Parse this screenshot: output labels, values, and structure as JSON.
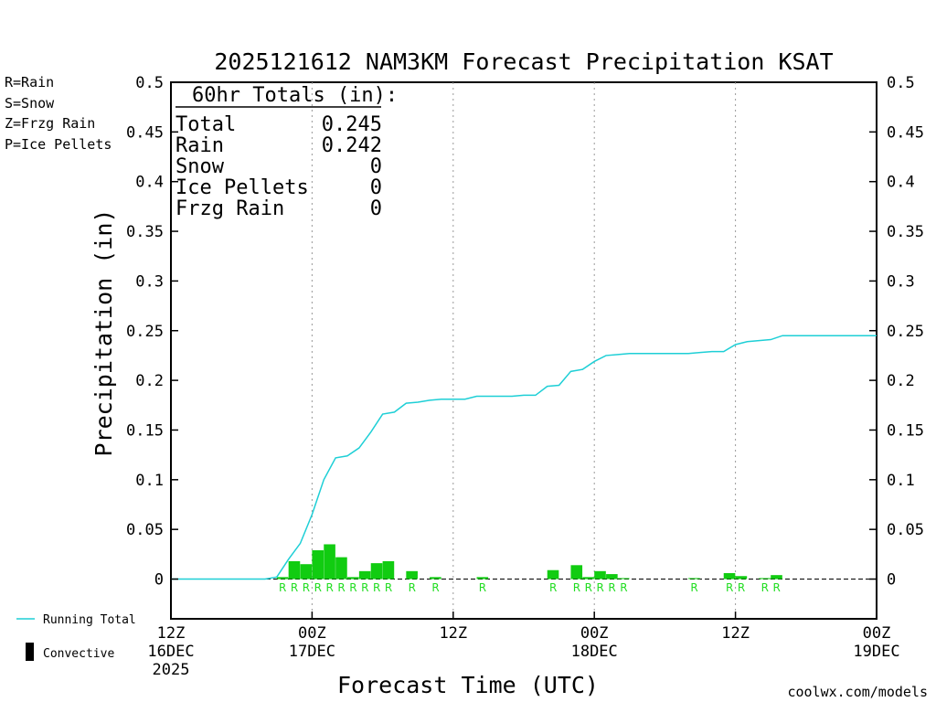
{
  "chart_data": {
    "type": "bar",
    "title": "2025121612 NAM3KM Forecast Precipitation KSAT",
    "xlabel": "Forecast Time (UTC)",
    "ylabel": "Precipitation (in)",
    "ylim": [
      -0.04,
      0.5
    ],
    "xlim_hours": [
      0,
      60
    ],
    "yticks": [
      "0",
      "0.05",
      "0.1",
      "0.15",
      "0.2",
      "0.25",
      "0.3",
      "0.35",
      "0.4",
      "0.45",
      "0.5"
    ],
    "ytick_values": [
      0,
      0.05,
      0.1,
      0.15,
      0.2,
      0.25,
      0.3,
      0.35,
      0.4,
      0.45,
      0.5
    ],
    "xticks": [
      {
        "hour": 0,
        "line1": "12Z",
        "line2": "16DEC",
        "line3": "2025"
      },
      {
        "hour": 12,
        "line1": "00Z",
        "line2": "17DEC",
        "line3": ""
      },
      {
        "hour": 24,
        "line1": "12Z",
        "line2": "",
        "line3": ""
      },
      {
        "hour": 36,
        "line1": "00Z",
        "line2": "18DEC",
        "line3": ""
      },
      {
        "hour": 48,
        "line1": "12Z",
        "line2": "",
        "line3": ""
      },
      {
        "hour": 60,
        "line1": "00Z",
        "line2": "19DEC",
        "line3": ""
      }
    ],
    "legend_types": [
      {
        "label": "R=Rain",
        "color": "#22dd22"
      },
      {
        "label": "S=Snow",
        "color": "#3355ee"
      },
      {
        "label": "Z=Frzg Rain",
        "color": "#ee8833"
      },
      {
        "label": "P=Ice Pellets",
        "color": "#ee2288"
      }
    ],
    "legend_series": [
      {
        "label": "Running Total",
        "color": "#1ecfd6"
      },
      {
        "label": "Convective",
        "color": "#000000"
      }
    ],
    "totals_title": "60hr Totals (in):",
    "totals": [
      {
        "label": "Total",
        "value": "0.245"
      },
      {
        "label": "Rain",
        "value": "0.242"
      },
      {
        "label": "Snow",
        "value": "0"
      },
      {
        "label": "Ice Pellets",
        "value": "0"
      },
      {
        "label": "Frzg Rain",
        "value": "0"
      }
    ],
    "bars": [
      {
        "hour": 10,
        "value": 0.002
      },
      {
        "hour": 11,
        "value": 0.018
      },
      {
        "hour": 12,
        "value": 0.015
      },
      {
        "hour": 13,
        "value": 0.029
      },
      {
        "hour": 14,
        "value": 0.035
      },
      {
        "hour": 15,
        "value": 0.022
      },
      {
        "hour": 16,
        "value": 0.002
      },
      {
        "hour": 17,
        "value": 0.008
      },
      {
        "hour": 18,
        "value": 0.016
      },
      {
        "hour": 19,
        "value": 0.018
      },
      {
        "hour": 21,
        "value": 0.008
      },
      {
        "hour": 23,
        "value": 0.002
      },
      {
        "hour": 27,
        "value": 0.002
      },
      {
        "hour": 33,
        "value": 0.009
      },
      {
        "hour": 35,
        "value": 0.014
      },
      {
        "hour": 36,
        "value": 0.002
      },
      {
        "hour": 37,
        "value": 0.008
      },
      {
        "hour": 38,
        "value": 0.005
      },
      {
        "hour": 39,
        "value": 0.001
      },
      {
        "hour": 45,
        "value": 0.001
      },
      {
        "hour": 48,
        "value": 0.006
      },
      {
        "hour": 49,
        "value": 0.003
      },
      {
        "hour": 51,
        "value": 0.001
      },
      {
        "hour": 52,
        "value": 0.004
      }
    ],
    "type_marks": [
      {
        "hour": 9,
        "label": "R"
      },
      {
        "hour": 10,
        "label": "R"
      },
      {
        "hour": 11,
        "label": "R"
      },
      {
        "hour": 12,
        "label": "R"
      },
      {
        "hour": 13,
        "label": "R"
      },
      {
        "hour": 14,
        "label": "R"
      },
      {
        "hour": 15,
        "label": "R"
      },
      {
        "hour": 16,
        "label": "R"
      },
      {
        "hour": 17,
        "label": "R"
      },
      {
        "hour": 18,
        "label": "R"
      },
      {
        "hour": 20,
        "label": "R"
      },
      {
        "hour": 22,
        "label": "R"
      },
      {
        "hour": 26,
        "label": "R"
      },
      {
        "hour": 32,
        "label": "R"
      },
      {
        "hour": 34,
        "label": "R"
      },
      {
        "hour": 35,
        "label": "R"
      },
      {
        "hour": 36,
        "label": "R"
      },
      {
        "hour": 37,
        "label": "R"
      },
      {
        "hour": 38,
        "label": "R"
      },
      {
        "hour": 44,
        "label": "R"
      },
      {
        "hour": 47,
        "label": "R"
      },
      {
        "hour": 48,
        "label": "R"
      },
      {
        "hour": 50,
        "label": "R"
      },
      {
        "hour": 51,
        "label": "R"
      }
    ],
    "running_total": {
      "hours": [
        0,
        1,
        2,
        3,
        4,
        5,
        6,
        7,
        8,
        9,
        10,
        11,
        12,
        13,
        14,
        15,
        16,
        17,
        18,
        19,
        20,
        21,
        22,
        23,
        24,
        25,
        26,
        27,
        28,
        29,
        30,
        31,
        32,
        33,
        34,
        35,
        36,
        37,
        38,
        39,
        40,
        41,
        42,
        43,
        44,
        45,
        46,
        47,
        48,
        49,
        50,
        51,
        52,
        53,
        54,
        55,
        56,
        57,
        58,
        59,
        60
      ],
      "values": [
        0,
        0,
        0,
        0,
        0,
        0,
        0,
        0,
        0,
        0.002,
        0.02,
        0.036,
        0.065,
        0.1,
        0.122,
        0.124,
        0.132,
        0.148,
        0.166,
        0.168,
        0.177,
        0.178,
        0.18,
        0.181,
        0.181,
        0.181,
        0.184,
        0.184,
        0.184,
        0.184,
        0.185,
        0.185,
        0.194,
        0.195,
        0.209,
        0.211,
        0.219,
        0.225,
        0.226,
        0.227,
        0.227,
        0.227,
        0.227,
        0.227,
        0.227,
        0.228,
        0.229,
        0.229,
        0.236,
        0.239,
        0.24,
        0.241,
        0.245,
        0.245,
        0.245,
        0.245,
        0.245,
        0.245,
        0.245,
        0.245,
        0.245
      ]
    },
    "credit": "coolwx.com/models"
  }
}
